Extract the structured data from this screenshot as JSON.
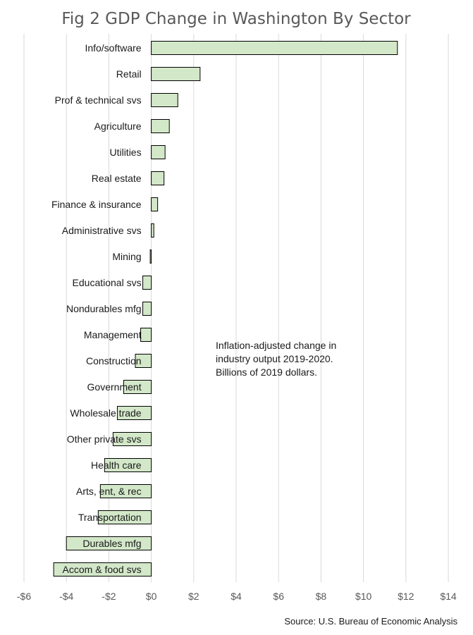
{
  "chart_data": {
    "type": "bar",
    "orientation": "horizontal",
    "title": "Fig 2 GDP Change in Washington By Sector",
    "categories": [
      "Info/software",
      "Retail",
      "Prof & technical svs",
      "Agriculture",
      "Utilities",
      "Real estate",
      "Finance & insurance",
      "Administrative svs",
      "Mining",
      "Educational svs",
      "Nondurables mfg",
      "Management",
      "Construction",
      "Government",
      "Wholesale trade",
      "Other private svs",
      "Health care",
      "Arts, ent, & rec",
      "Transportation",
      "Durables mfg",
      "Accom & food svs"
    ],
    "values": [
      11.6,
      2.3,
      1.25,
      0.85,
      0.65,
      0.6,
      0.3,
      0.12,
      -0.05,
      -0.4,
      -0.4,
      -0.5,
      -0.75,
      -1.3,
      -1.6,
      -1.8,
      -2.2,
      -2.4,
      -2.5,
      -4.0,
      -4.6
    ],
    "xlim": [
      -6,
      14
    ],
    "xticks": [
      "-$6",
      "-$4",
      "-$2",
      "$0",
      "$2",
      "$4",
      "$6",
      "$8",
      "$10",
      "$12",
      "$14"
    ],
    "xtick_values": [
      -6,
      -4,
      -2,
      0,
      2,
      4,
      6,
      8,
      10,
      12,
      14
    ],
    "grid": "vertical",
    "bar_color": "#d3e8c9",
    "bar_edge_color": "#000000",
    "gridline_color": "#d9d9d9",
    "annotation": [
      "Inflation-adjusted change in",
      "industry output  2019-2020.",
      "Billions of 2019 dollars."
    ],
    "source": "Source: U.S. Bureau of Economic Analysis"
  }
}
